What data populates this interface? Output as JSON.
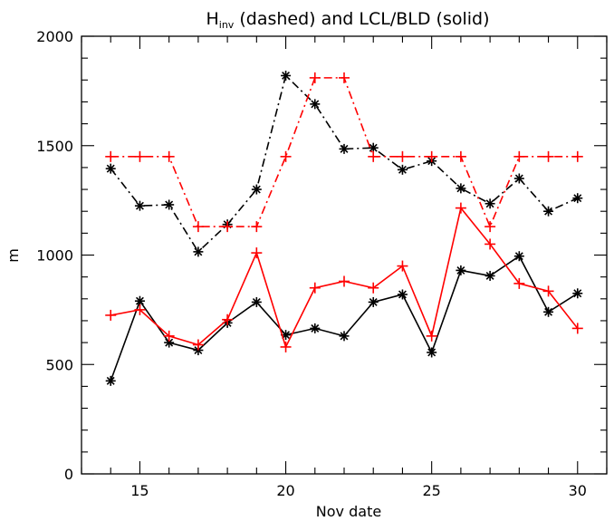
{
  "chart_data": {
    "type": "line",
    "title": {
      "prefix": "H",
      "subscript": "inv",
      "suffix": " (dashed) and LCL/BLD (solid)"
    },
    "xlabel": "Nov date",
    "ylabel": "m",
    "xlim": [
      13,
      31
    ],
    "ylim": [
      0,
      2000
    ],
    "xticks": [
      15,
      20,
      25,
      30
    ],
    "yticks": [
      0,
      500,
      1000,
      1500,
      2000
    ],
    "x": [
      14,
      15,
      16,
      17,
      18,
      19,
      20,
      21,
      22,
      23,
      24,
      25,
      26,
      27,
      28,
      29,
      30
    ],
    "series": [
      {
        "color": "#000000",
        "line_style": "dash-dot",
        "marker": "asterisk",
        "values": [
          1395,
          1225,
          1230,
          1015,
          1140,
          1300,
          1820,
          1690,
          1485,
          1490,
          1390,
          1430,
          1305,
          1235,
          1350,
          1200,
          1260
        ]
      },
      {
        "color": "#ff0000",
        "line_style": "dash-dot",
        "marker": "plus",
        "values": [
          1450,
          1450,
          1450,
          1130,
          1130,
          1130,
          1450,
          1810,
          1810,
          1450,
          1450,
          1450,
          1450,
          1130,
          1450,
          1450,
          1450
        ]
      },
      {
        "color": "#000000",
        "line_style": "solid",
        "marker": "asterisk",
        "values": [
          425,
          790,
          600,
          565,
          690,
          785,
          635,
          665,
          630,
          785,
          820,
          555,
          930,
          905,
          995,
          740,
          825
        ]
      },
      {
        "color": "#ff0000",
        "line_style": "solid",
        "marker": "plus",
        "values": [
          725,
          750,
          630,
          590,
          705,
          1010,
          580,
          850,
          880,
          850,
          950,
          630,
          1215,
          1050,
          870,
          835,
          665
        ]
      }
    ],
    "grid": false,
    "legend": "none"
  }
}
